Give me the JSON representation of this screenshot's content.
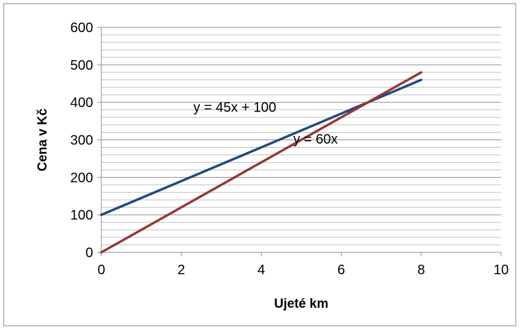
{
  "chart_data": {
    "type": "line",
    "title": "",
    "xlabel": "Ujeté km",
    "ylabel": "Cena v Kč",
    "xlim": [
      0,
      10
    ],
    "ylim": [
      0,
      600
    ],
    "x_ticks": [
      0,
      2,
      4,
      6,
      8,
      10
    ],
    "y_ticks": [
      0,
      100,
      200,
      300,
      400,
      500,
      600
    ],
    "grid": "horizontal major and minor",
    "legend": "none",
    "series": [
      {
        "x": [
          0,
          8
        ],
        "y": [
          100,
          460
        ],
        "color": "#1f497d"
      },
      {
        "x": [
          0,
          8
        ],
        "y": [
          0,
          480
        ],
        "color": "#953735"
      }
    ],
    "annotations": [
      {
        "text": "y = 45x + 100",
        "x": 2.3,
        "y": 375
      },
      {
        "text": "y = 60x",
        "x": 4.8,
        "y": 290
      }
    ]
  }
}
